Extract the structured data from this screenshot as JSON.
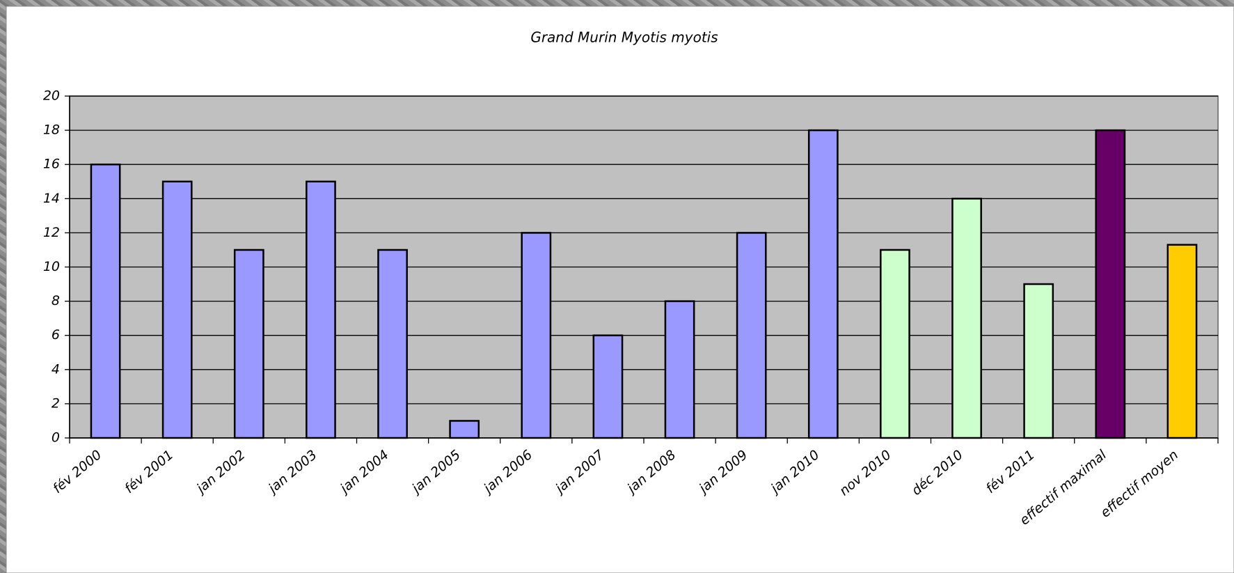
{
  "chart_data": {
    "type": "bar",
    "title": "Grand Murin Myotis myotis",
    "categories": [
      "fév 2000",
      "fév 2001",
      "jan 2002",
      "jan 2003",
      "jan 2004",
      "jan 2005",
      "jan 2006",
      "jan 2007",
      "jan 2008",
      "jan 2009",
      "jan 2010",
      "nov 2010",
      "déc 2010",
      "fév 2011",
      "effectif maximal",
      "effectif moyen"
    ],
    "values": [
      16,
      15,
      11,
      15,
      11,
      1,
      12,
      6,
      8,
      12,
      18,
      11,
      14,
      9,
      18,
      11.3
    ],
    "colors": [
      "#9999ff",
      "#9999ff",
      "#9999ff",
      "#9999ff",
      "#9999ff",
      "#9999ff",
      "#9999ff",
      "#9999ff",
      "#9999ff",
      "#9999ff",
      "#9999ff",
      "#ccffcc",
      "#ccffcc",
      "#ccffcc",
      "#660066",
      "#ffcc00"
    ],
    "ylim": [
      0,
      20
    ],
    "yticks": [
      0,
      2,
      4,
      6,
      8,
      10,
      12,
      14,
      16,
      18,
      20
    ],
    "grid": true
  }
}
